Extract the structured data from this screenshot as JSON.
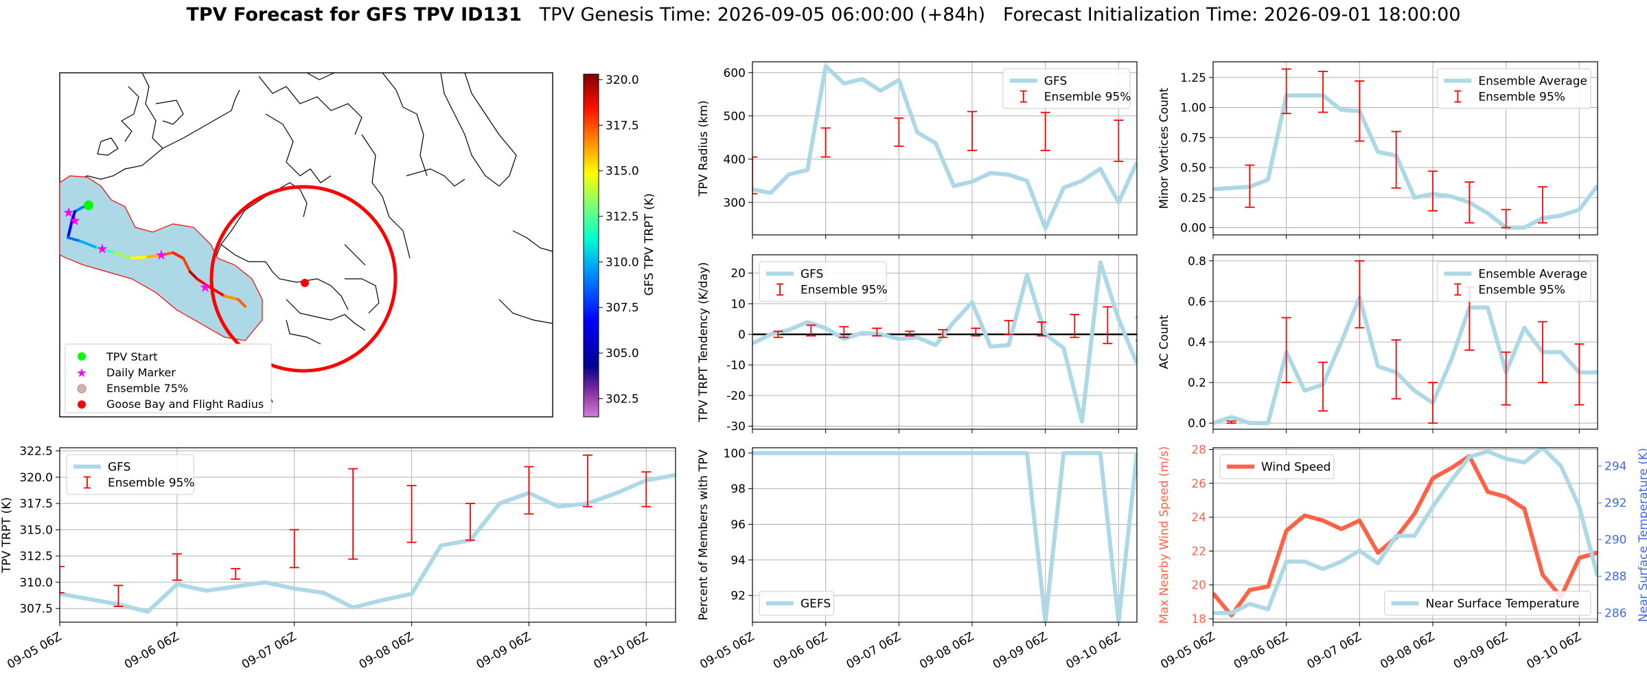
{
  "header": {
    "title_bold": "TPV Forecast for GFS TPV ID131",
    "title_rest": "   TPV Genesis Time: 2026-09-05 06:00:00 (+84h)   Forecast Initialization Time: 2026-09-01 18:00:00"
  },
  "colors": {
    "line": "#add8e6",
    "error": "#ff0000",
    "wind": "#ff6347",
    "temp_axis": "#4169e1",
    "ensemble_fill": "#add8e6",
    "radius_circle": "#ff0000"
  },
  "map": {
    "legend": [
      "TPV Start",
      "Daily Marker",
      "Ensemble 75%",
      "Goose Bay and Flight Radius"
    ],
    "colorbar_label": "GFS TPV TRPT (K)",
    "colorbar_ticks": [
      302.5,
      305.0,
      307.5,
      310.0,
      312.5,
      315.0,
      317.5,
      320.0
    ],
    "colorbar_range": [
      301.5,
      320.3
    ],
    "colormap": "jet"
  },
  "chart_data": [
    {
      "id": "radius",
      "type": "line",
      "ylabel": "TPV Radius (km)",
      "ylim": [
        225,
        625
      ],
      "yticks": [
        300,
        400,
        500,
        600
      ],
      "xticks_shown": false,
      "legend": [
        "GFS",
        "Ensemble 95%"
      ],
      "legend_pos": "top-right",
      "series": [
        {
          "name": "GFS",
          "values": [
            330,
            322,
            365,
            375,
            615,
            575,
            585,
            558,
            583,
            462,
            437,
            338,
            348,
            368,
            364,
            350,
            240,
            334,
            350,
            378,
            300,
            393
          ]
        }
      ],
      "errorbars": [
        [
          0,
          320,
          405
        ],
        [
          1,
          405,
          472
        ],
        [
          2,
          430,
          495
        ],
        [
          3,
          420,
          510
        ],
        [
          4,
          420,
          508
        ],
        [
          5,
          395,
          490
        ],
        [
          6,
          348,
          440
        ],
        [
          7,
          360,
          435
        ],
        [
          8,
          265,
          345
        ],
        [
          9,
          260,
          305
        ],
        [
          10,
          285,
          340
        ]
      ]
    },
    {
      "id": "tendency",
      "type": "line",
      "ylabel": "TPV TRPT Tendency (K/day)",
      "ylim": [
        -31,
        26
      ],
      "yticks": [
        -30,
        -20,
        -10,
        0,
        10,
        20
      ],
      "xticks_shown": false,
      "zero_line": true,
      "legend": [
        "GFS",
        "Ensemble 95%"
      ],
      "legend_pos": "top-left",
      "series": [
        {
          "name": "GFS",
          "values": [
            -3,
            0,
            1.5,
            4,
            2,
            -1.5,
            0.5,
            0,
            -1.5,
            -1,
            -3.5,
            4,
            10.5,
            -4,
            -3.5,
            19.5,
            0,
            -4.5,
            -28.5,
            23.5,
            5,
            -9.5
          ]
        }
      ],
      "errorbars": [
        [
          -0.1,
          -1.5,
          1.5
        ],
        [
          0.35,
          -1,
          1
        ],
        [
          0.8,
          -0.5,
          3
        ],
        [
          1.25,
          -1,
          2.5
        ],
        [
          1.7,
          -0.5,
          2
        ],
        [
          2.15,
          -0.5,
          1
        ],
        [
          2.6,
          -1,
          1.5
        ],
        [
          3.05,
          -0.5,
          2
        ],
        [
          3.5,
          0,
          4.5
        ],
        [
          3.95,
          -0.5,
          4
        ],
        [
          4.4,
          -1,
          6.5
        ],
        [
          4.85,
          -3,
          9
        ],
        [
          5.3,
          -2,
          5.5
        ],
        [
          5.75,
          -2,
          3.5
        ],
        [
          6.2,
          -1,
          4
        ],
        [
          6.65,
          -0.5,
          6.5
        ],
        [
          7.1,
          -1,
          4.5
        ],
        [
          7.55,
          -0.5,
          3.5
        ],
        [
          8.0,
          -4,
          1.5
        ]
      ]
    },
    {
      "id": "percent",
      "type": "line",
      "ylabel": "Percent of Members with TPV",
      "ylim": [
        90.5,
        100.3
      ],
      "yticks": [
        92,
        94,
        96,
        98,
        100
      ],
      "xticks_shown": true,
      "legend": [
        "GEFS"
      ],
      "legend_pos": "bottom-left",
      "series": [
        {
          "name": "GEFS",
          "values": [
            100,
            100,
            100,
            100,
            100,
            100,
            100,
            100,
            100,
            100,
            100,
            100,
            100,
            100,
            100,
            100,
            90.5,
            100,
            100,
            100,
            90.5,
            100
          ]
        }
      ]
    },
    {
      "id": "minor",
      "type": "line",
      "ylabel": "Minor Vortices Count",
      "ylim": [
        -0.06,
        1.38
      ],
      "yticks": [
        0.0,
        0.25,
        0.5,
        0.75,
        1.0,
        1.25
      ],
      "xticks_shown": false,
      "legend": [
        "Ensemble Average",
        "Ensemble 95%"
      ],
      "legend_pos": "top-right",
      "series": [
        {
          "name": "Ensemble Average",
          "values": [
            0.32,
            0.33,
            0.34,
            0.4,
            1.1,
            1.1,
            1.1,
            0.98,
            0.97,
            0.63,
            0.6,
            0.25,
            0.28,
            0.26,
            0.21,
            0.12,
            0.0,
            0.0,
            0.08,
            0.1,
            0.15,
            0.35
          ]
        }
      ],
      "errorbars": [
        [
          -0.2,
          0.1,
          0.55
        ],
        [
          0.5,
          0.17,
          0.52
        ],
        [
          1.0,
          0.95,
          1.32
        ],
        [
          1.5,
          0.96,
          1.3
        ],
        [
          2.0,
          0.72,
          1.22
        ],
        [
          2.5,
          0.33,
          0.8
        ],
        [
          3.0,
          0.14,
          0.47
        ],
        [
          3.5,
          0.04,
          0.38
        ],
        [
          4.0,
          0.0,
          0.15
        ],
        [
          4.5,
          0.04,
          0.34
        ]
      ]
    },
    {
      "id": "ac",
      "type": "line",
      "ylabel": "AC Count",
      "ylim": [
        -0.03,
        0.83
      ],
      "yticks": [
        0.0,
        0.2,
        0.4,
        0.6,
        0.8
      ],
      "xticks_shown": false,
      "legend": [
        "Ensemble Average",
        "Ensemble 95%"
      ],
      "legend_pos": "top-right",
      "series": [
        {
          "name": "Ensemble Average",
          "values": [
            0.0,
            0.03,
            0.0,
            0.0,
            0.35,
            0.16,
            0.19,
            0.4,
            0.62,
            0.28,
            0.25,
            0.16,
            0.1,
            0.31,
            0.57,
            0.57,
            0.25,
            0.47,
            0.35,
            0.35,
            0.25,
            0.25
          ]
        }
      ],
      "errorbars": [
        [
          0.25,
          0.0,
          0.01
        ],
        [
          1.0,
          0.2,
          0.52
        ],
        [
          1.5,
          0.06,
          0.3
        ],
        [
          2.0,
          0.47,
          0.8
        ],
        [
          2.5,
          0.12,
          0.41
        ],
        [
          3.0,
          0.0,
          0.2
        ],
        [
          3.5,
          0.36,
          0.67
        ],
        [
          4.0,
          0.09,
          0.35
        ],
        [
          4.5,
          0.2,
          0.5
        ],
        [
          5.0,
          0.09,
          0.39
        ]
      ]
    },
    {
      "id": "wind",
      "type": "line",
      "ylabel": "Max Nearby Wind Speed (m/s)",
      "ylabel_right": "Near Surface Temperature (K)",
      "ylim": [
        17.8,
        28.1
      ],
      "yticks": [
        18,
        20,
        22,
        24,
        26,
        28
      ],
      "ylim_right": [
        285.5,
        295.0
      ],
      "yticks_right": [
        286,
        288,
        290,
        292,
        294
      ],
      "xticks_shown": true,
      "legend": [
        "Wind Speed",
        "Near Surface Temperature"
      ],
      "series": [
        {
          "name": "Wind Speed",
          "axis": "left",
          "values": [
            19.5,
            18.2,
            19.7,
            19.9,
            23.2,
            24.1,
            23.8,
            23.3,
            23.8,
            21.9,
            22.8,
            24.2,
            26.3,
            26.9,
            27.6,
            25.5,
            25.2,
            24.5,
            20.6,
            19.3,
            21.6,
            21.9
          ]
        },
        {
          "name": "Near Surface Temperature",
          "axis": "right",
          "values": [
            286.0,
            286.0,
            286.5,
            286.2,
            288.8,
            288.8,
            288.4,
            288.8,
            289.4,
            288.7,
            290.2,
            290.2,
            291.8,
            293.2,
            294.5,
            294.8,
            294.4,
            294.2,
            295.0,
            294.0,
            291.8,
            288.0
          ]
        }
      ]
    },
    {
      "id": "trpt",
      "type": "line",
      "ylabel": "TPV TRPT (K)",
      "ylim": [
        306.2,
        322.8
      ],
      "yticks": [
        307.5,
        310.0,
        312.5,
        315.0,
        317.5,
        320.0,
        322.5
      ],
      "xticks_shown": true,
      "legend": [
        "GFS",
        "Ensemble 95%"
      ],
      "legend_pos": "top-left",
      "series": [
        {
          "name": "GFS",
          "values": [
            308.9,
            308.4,
            307.9,
            307.2,
            309.8,
            309.2,
            309.6,
            310.0,
            309.4,
            309.0,
            307.6,
            308.3,
            308.9,
            313.5,
            314.0,
            317.5,
            318.5,
            317.2,
            317.5,
            318.5,
            319.7,
            320.2
          ]
        }
      ],
      "errorbars": [
        [
          0.0,
          309.0,
          311.5
        ],
        [
          0.5,
          307.7,
          309.7
        ],
        [
          1.0,
          310.2,
          312.7
        ],
        [
          1.5,
          310.3,
          311.3
        ],
        [
          2.0,
          311.4,
          315.0
        ],
        [
          2.5,
          312.2,
          320.8
        ],
        [
          3.0,
          313.8,
          319.2
        ],
        [
          3.5,
          314.0,
          317.5
        ],
        [
          4.0,
          316.5,
          321.0
        ],
        [
          4.5,
          317.2,
          322.1
        ],
        [
          5.0,
          317.2,
          320.5
        ]
      ]
    }
  ],
  "x_axis": {
    "n_points": 22,
    "step_days": 0.25,
    "ticks": [
      "09-05 06Z",
      "09-06 06Z",
      "09-07 06Z",
      "09-08 06Z",
      "09-09 06Z",
      "09-10 06Z"
    ]
  }
}
